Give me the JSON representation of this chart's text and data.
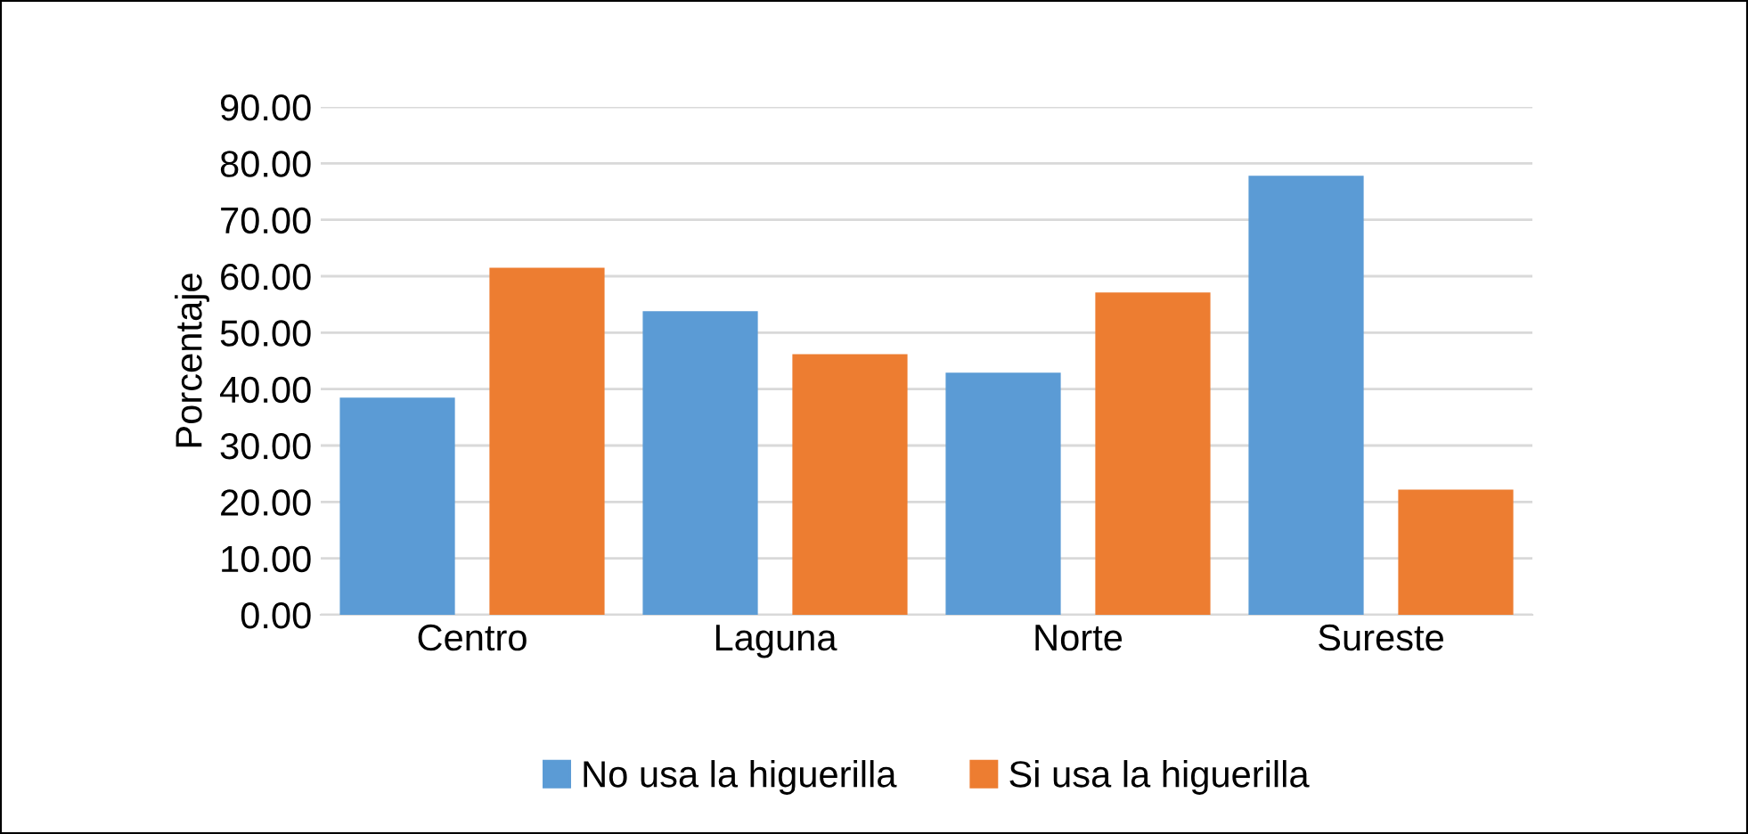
{
  "chart_data": {
    "type": "bar",
    "ylabel": "Porcentaje",
    "categories": [
      "Centro",
      "Laguna",
      "Norte",
      "Sureste"
    ],
    "series": [
      {
        "name": "No usa la higuerilla",
        "color": "#5b9bd5",
        "values": [
          38.5,
          53.8,
          42.9,
          77.8
        ]
      },
      {
        "name": "Si usa la higuerilla",
        "color": "#ed7d31",
        "values": [
          61.5,
          46.2,
          57.1,
          22.2
        ]
      }
    ],
    "ylim": [
      0,
      90
    ],
    "yticks": [
      {
        "value": 0,
        "label": "0.00"
      },
      {
        "value": 10,
        "label": "10.00"
      },
      {
        "value": 20,
        "label": "20.00"
      },
      {
        "value": 30,
        "label": "30.00"
      },
      {
        "value": 40,
        "label": "40.00"
      },
      {
        "value": 50,
        "label": "50.00"
      },
      {
        "value": 60,
        "label": "60.00"
      },
      {
        "value": 70,
        "label": "70.00"
      },
      {
        "value": 80,
        "label": "80.00"
      },
      {
        "value": 90,
        "label": "90.00"
      }
    ],
    "grid": "y",
    "legend": "bottom"
  }
}
